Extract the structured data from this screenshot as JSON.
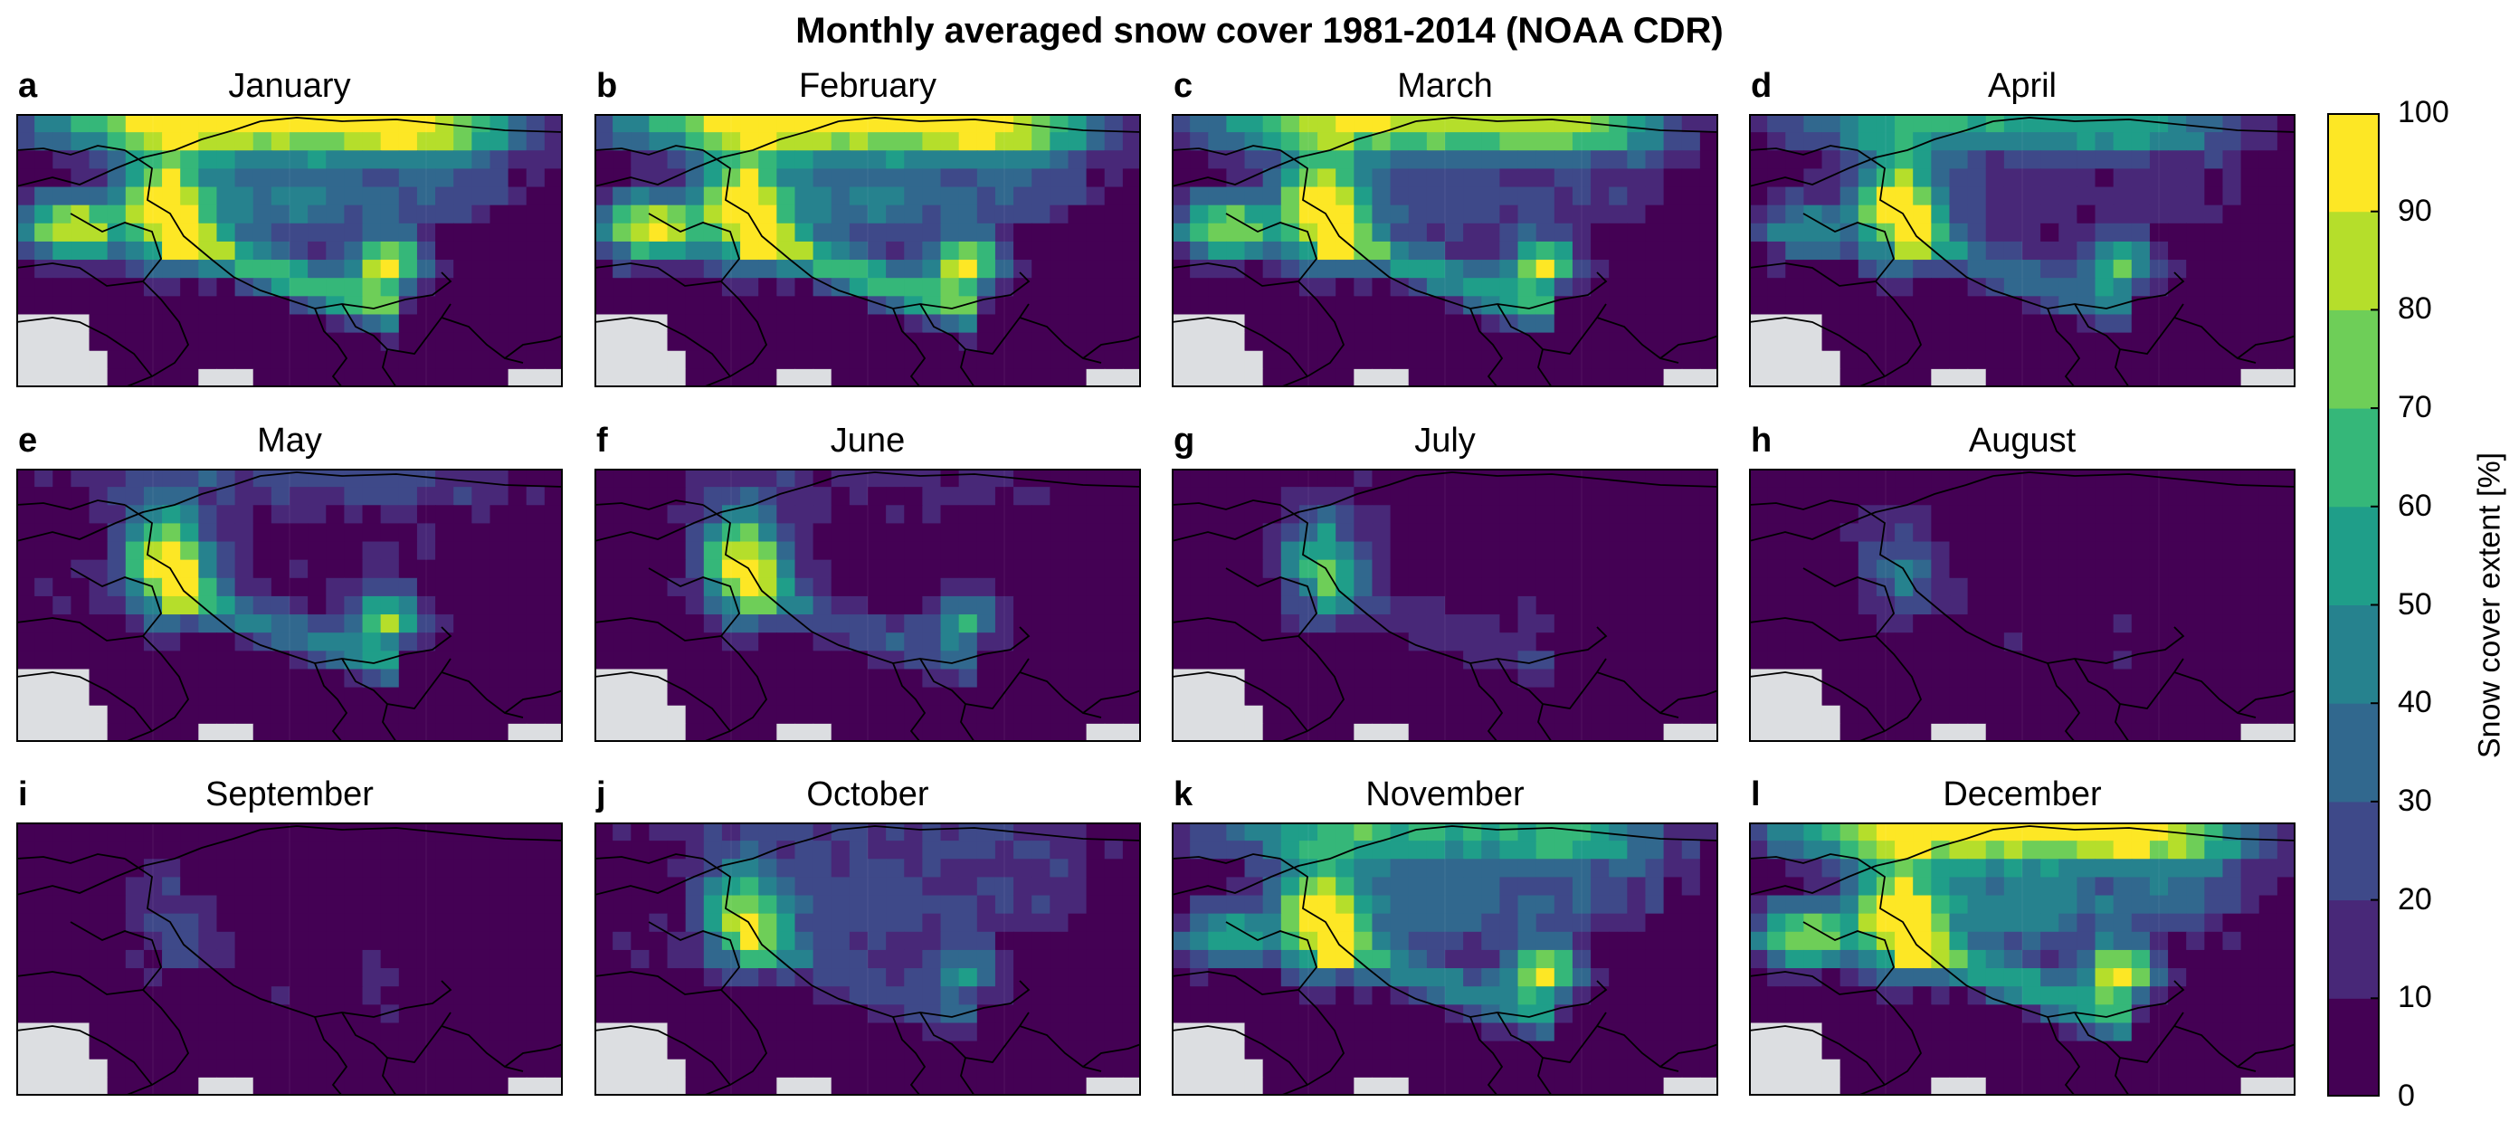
{
  "title": "Monthly averaged snow cover 1981-2014 (NOAA CDR)",
  "panels": [
    {
      "letter": "a",
      "month": "January"
    },
    {
      "letter": "b",
      "month": "February"
    },
    {
      "letter": "c",
      "month": "March"
    },
    {
      "letter": "d",
      "month": "April"
    },
    {
      "letter": "e",
      "month": "May"
    },
    {
      "letter": "f",
      "month": "June"
    },
    {
      "letter": "g",
      "month": "July"
    },
    {
      "letter": "h",
      "month": "August"
    },
    {
      "letter": "i",
      "month": "September"
    },
    {
      "letter": "j",
      "month": "October"
    },
    {
      "letter": "k",
      "month": "November"
    },
    {
      "letter": "l",
      "month": "December"
    }
  ],
  "colorbar": {
    "label": "Snow cover extent [%]",
    "ticks": [
      "0",
      "10",
      "20",
      "30",
      "40",
      "50",
      "60",
      "70",
      "80",
      "90",
      "100"
    ],
    "colors": [
      "#440154",
      "#482878",
      "#3e4989",
      "#31688e",
      "#26828e",
      "#1f9e89",
      "#35b779",
      "#6ece58",
      "#b5de2b",
      "#fde725"
    ]
  },
  "colors": {
    "ocean": "#dcdee1",
    "border": "#000000"
  },
  "months_snow_peak_percent": [
    100,
    100,
    100,
    100,
    100,
    100,
    60,
    30,
    20,
    70,
    100,
    100
  ]
}
